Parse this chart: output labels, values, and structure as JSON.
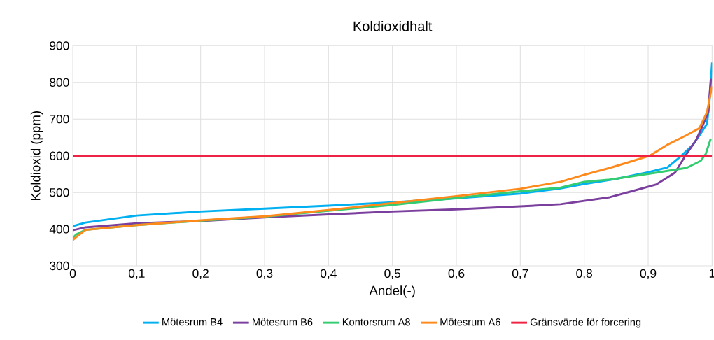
{
  "chart_data": {
    "type": "line",
    "title": "Koldioxidhalt",
    "xlabel": "Andel(-)",
    "ylabel": "Koldioxid (ppm)",
    "xlim": [
      0,
      1
    ],
    "ylim": [
      300,
      900
    ],
    "xticks": [
      0,
      {
        "value": 0.1,
        "label": "0,1"
      },
      {
        "value": 0.2,
        "label": "0,2"
      },
      {
        "value": 0.3,
        "label": "0,3"
      },
      {
        "value": 0.4,
        "label": "0,4"
      },
      {
        "value": 0.5,
        "label": "0,5"
      },
      {
        "value": 0.6,
        "label": "0,6"
      },
      {
        "value": 0.7,
        "label": "0,7"
      },
      {
        "value": 0.8,
        "label": "0,8"
      },
      {
        "value": 0.9,
        "label": "0,9"
      },
      1
    ],
    "yticks": [
      300,
      400,
      500,
      600,
      700,
      800,
      900
    ],
    "grid": true,
    "legend": "bottom",
    "series": [
      {
        "name": "Mötesrum B4",
        "color": "#00b0f0",
        "x": [
          0,
          0.02,
          0.1,
          0.2,
          0.3,
          0.4,
          0.5,
          0.6,
          0.7,
          0.76,
          0.8,
          0.85,
          0.9,
          0.93,
          0.952,
          0.97,
          0.98,
          0.992,
          0.996,
          1
        ],
        "values": [
          408,
          418,
          437,
          448,
          456,
          464,
          473,
          484,
          497,
          510,
          523,
          537,
          555,
          568,
          600,
          630,
          655,
          687,
          750,
          854
        ]
      },
      {
        "name": "Mötesrum B6",
        "color": "#7b3f9e",
        "x": [
          0,
          0.02,
          0.1,
          0.2,
          0.3,
          0.4,
          0.5,
          0.6,
          0.7,
          0.763,
          0.84,
          0.876,
          0.913,
          0.942,
          0.96,
          0.975,
          0.985,
          0.994,
          0.998
        ],
        "values": [
          397,
          405,
          416,
          422,
          432,
          440,
          448,
          454,
          462,
          468,
          487,
          504,
          522,
          554,
          605,
          643,
          681,
          719,
          810
        ]
      },
      {
        "name": "Kontorsrum A8",
        "color": "#33cc70",
        "x": [
          0,
          0.005,
          0.02,
          0.1,
          0.2,
          0.3,
          0.4,
          0.5,
          0.6,
          0.7,
          0.763,
          0.8,
          0.84,
          0.913,
          0.96,
          0.982,
          0.99,
          0.998
        ],
        "values": [
          376,
          385,
          398,
          411,
          423,
          434,
          450,
          466,
          485,
          503,
          513,
          529,
          535,
          554,
          567,
          586,
          605,
          647
        ]
      },
      {
        "name": "Mötesrum A6",
        "color": "#ff8a1c",
        "x": [
          0,
          0.005,
          0.02,
          0.1,
          0.2,
          0.3,
          0.4,
          0.5,
          0.6,
          0.7,
          0.763,
          0.8,
          0.84,
          0.876,
          0.902,
          0.93,
          0.96,
          0.98,
          0.992,
          1
        ],
        "values": [
          370,
          378,
          398,
          411,
          424,
          435,
          452,
          471,
          490,
          510,
          529,
          548,
          567,
          586,
          600,
          630,
          656,
          675,
          719,
          790
        ]
      },
      {
        "name": "Gränsvärde för forcering",
        "color": "#ee2244",
        "x": [
          0,
          1
        ],
        "values": [
          600,
          600
        ]
      }
    ]
  }
}
